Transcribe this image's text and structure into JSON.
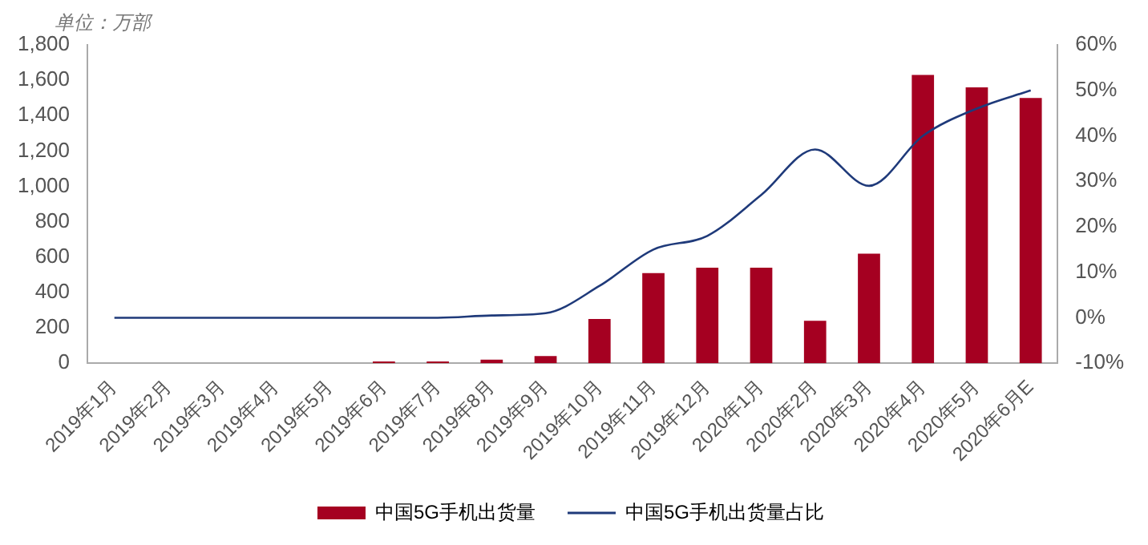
{
  "chart_data": {
    "type": "bar",
    "annotations": [
      "单位：万部"
    ],
    "categories": [
      "2019年1月",
      "2019年2月",
      "2019年3月",
      "2019年4月",
      "2019年5月",
      "2019年6月",
      "2019年7月",
      "2019年8月",
      "2019年9月",
      "2019年10月",
      "2019年11月",
      "2019年12月",
      "2020年1月",
      "2020年2月",
      "2020年3月",
      "2020年4月",
      "2020年5月",
      "2020年6月E"
    ],
    "series": [
      {
        "name": "中国5G手机出货量",
        "color": "#a50021",
        "values": [
          0,
          0,
          0,
          0,
          0,
          10,
          10,
          20,
          40,
          250,
          510,
          540,
          540,
          240,
          620,
          1630,
          1560,
          1500
        ]
      },
      {
        "name": "中国5G手机出货量占比",
        "type": "line",
        "axis": "y2",
        "color": "#1f3a7a",
        "values": [
          0,
          0,
          0,
          0,
          0,
          0,
          0,
          0.5,
          1,
          7,
          15,
          18,
          27,
          37,
          29,
          40,
          46,
          50
        ]
      }
    ],
    "ylim": [
      0,
      1800
    ],
    "yticks": [
      {
        "value": 0,
        "label": "0"
      },
      {
        "value": 200,
        "label": "200"
      },
      {
        "value": 400,
        "label": "400"
      },
      {
        "value": 600,
        "label": "600"
      },
      {
        "value": 800,
        "label": "800"
      },
      {
        "value": 1000,
        "label": "1,000"
      },
      {
        "value": 1200,
        "label": "1,200"
      },
      {
        "value": 1400,
        "label": "1,400"
      },
      {
        "value": 1600,
        "label": "1,600"
      },
      {
        "value": 1800,
        "label": "1,800"
      }
    ],
    "y2lim": [
      -10,
      60
    ],
    "y2ticks": [
      {
        "value": -10,
        "label": "-10%"
      },
      {
        "value": 0,
        "label": "0%"
      },
      {
        "value": 10,
        "label": "10%"
      },
      {
        "value": 20,
        "label": "20%"
      },
      {
        "value": 30,
        "label": "30%"
      },
      {
        "value": 40,
        "label": "40%"
      },
      {
        "value": 50,
        "label": "50%"
      },
      {
        "value": 60,
        "label": "60%"
      }
    ],
    "grid": false,
    "legend": "bottom",
    "marker": "none"
  }
}
